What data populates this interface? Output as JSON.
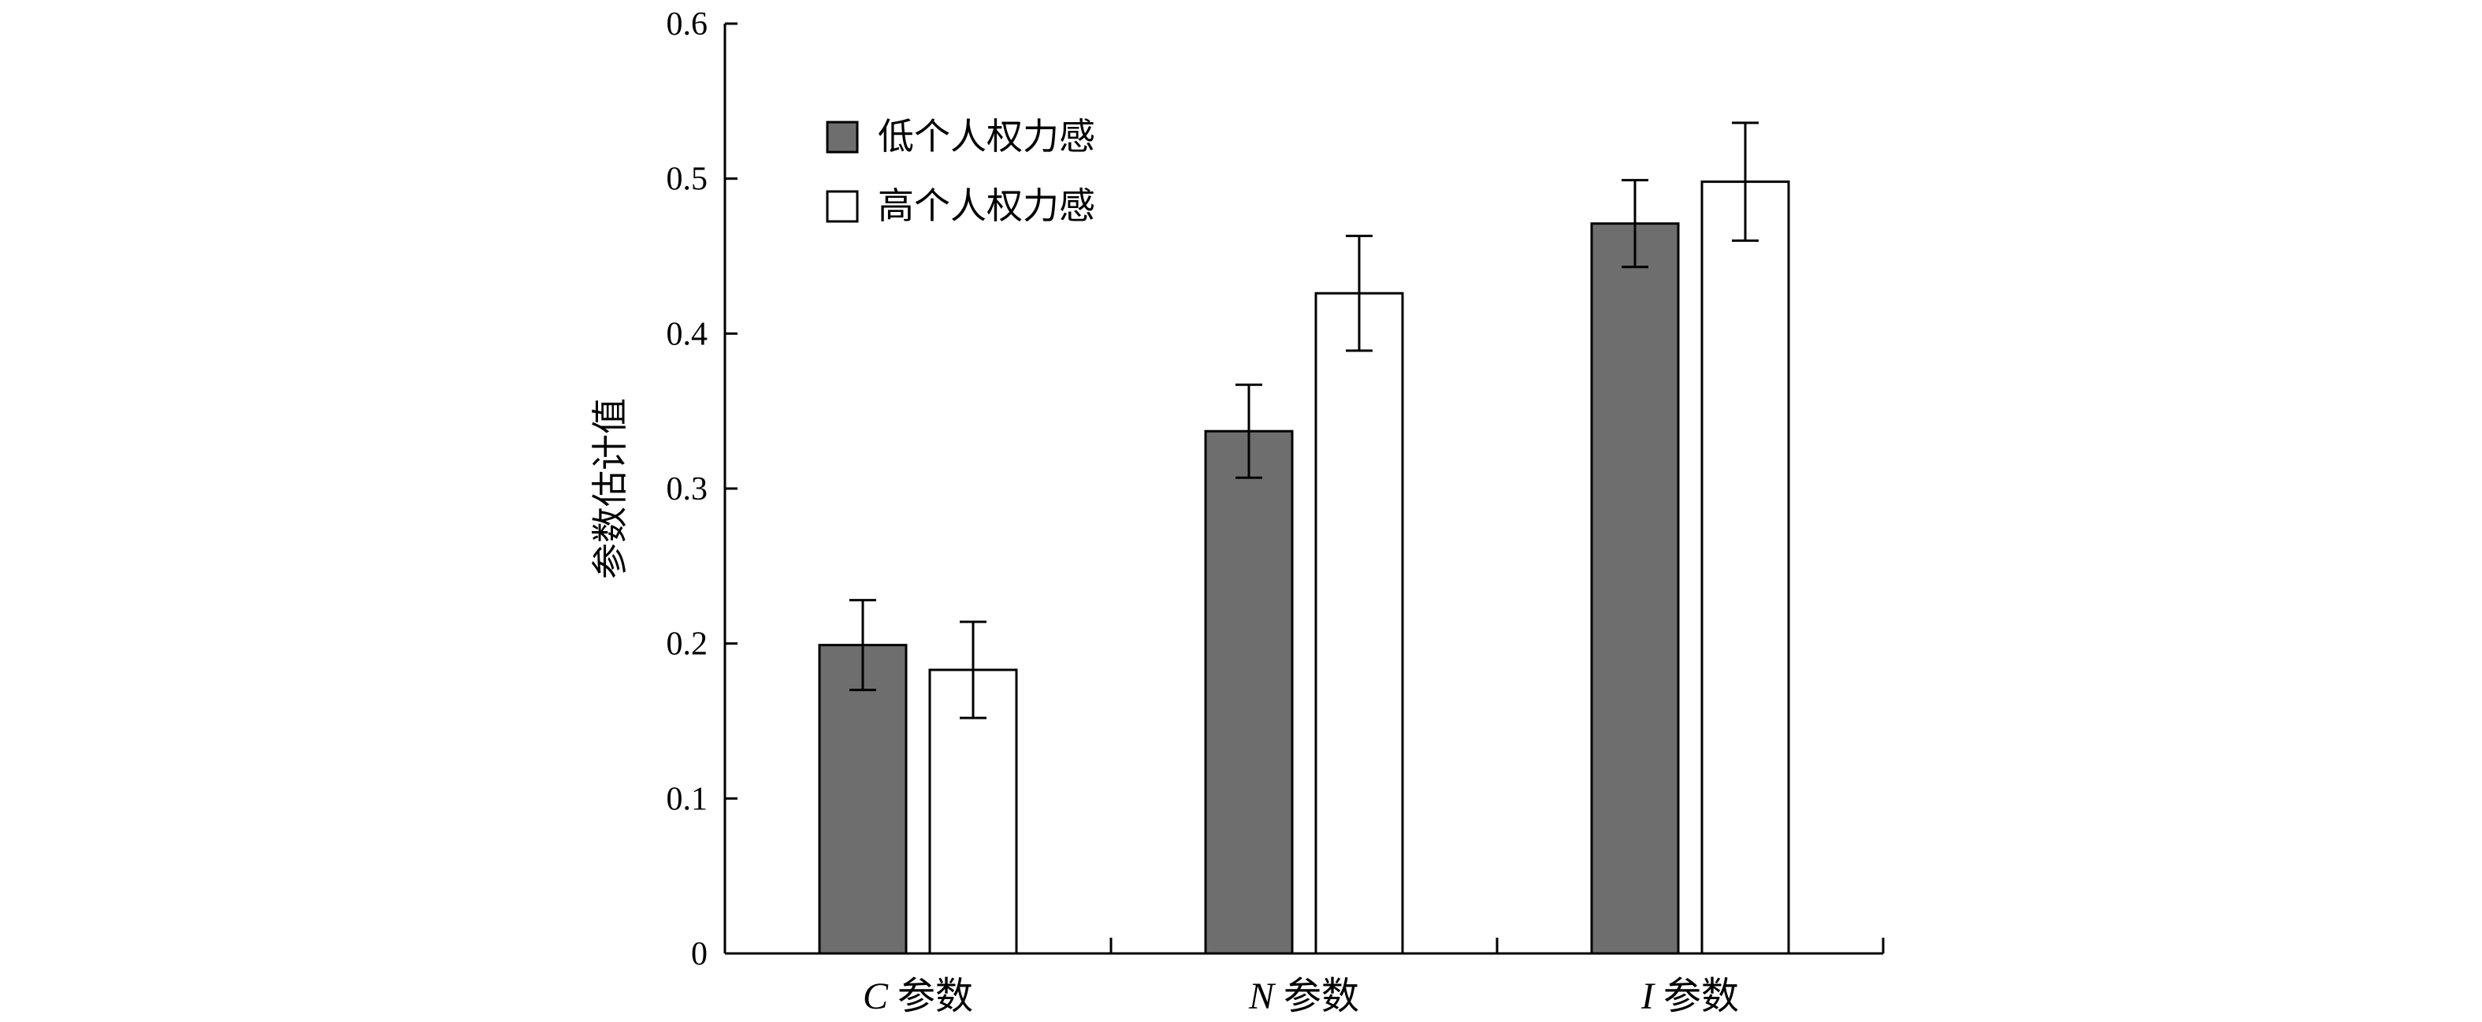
{
  "chart_data": {
    "type": "bar",
    "ylabel": "参数估计值",
    "xlabel": "",
    "ylim": [
      0,
      0.6
    ],
    "yticks": [
      "0",
      "0.1",
      "0.2",
      "0.3",
      "0.4",
      "0.5",
      "0.6"
    ],
    "categories": [
      {
        "var": "C",
        "suffix": "参数"
      },
      {
        "var": "N",
        "suffix": "参数"
      },
      {
        "var": "I",
        "suffix": "参数"
      }
    ],
    "series": [
      {
        "name": "低个人权力感",
        "color": "#6f6e6f",
        "values": [
          0.199,
          0.337,
          0.471
        ],
        "errors": [
          0.029,
          0.03,
          0.028
        ]
      },
      {
        "name": "高个人权力感",
        "color": "#ffffff",
        "values": [
          0.183,
          0.426,
          0.498
        ],
        "errors": [
          0.031,
          0.037,
          0.038
        ]
      }
    ],
    "legend_position": "top-left",
    "grid": false
  }
}
